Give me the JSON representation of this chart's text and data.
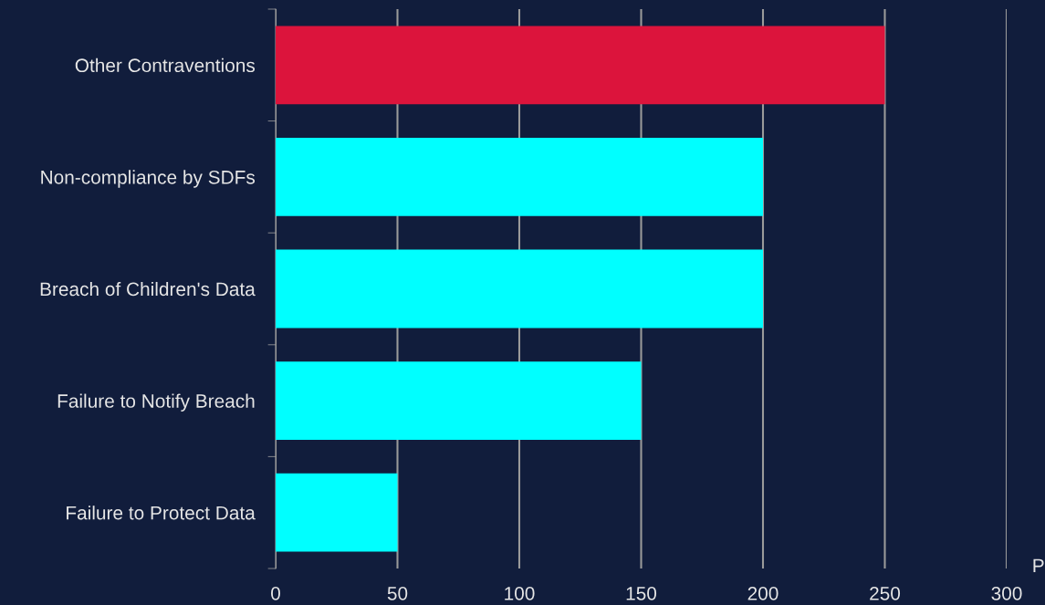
{
  "chart_data": {
    "type": "bar",
    "orientation": "horizontal",
    "categories": [
      "Other Contraventions",
      "Non-compliance by SDFs",
      "Breach of Children's Data",
      "Failure to Notify Breach",
      "Failure to Protect Data"
    ],
    "values": [
      250,
      200,
      200,
      150,
      50
    ],
    "colors": [
      "#dc143c",
      "#00ffff",
      "#00ffff",
      "#00ffff",
      "#00ffff"
    ],
    "xlabel": "P",
    "xlim": [
      0,
      300
    ],
    "xticks": [
      0,
      50,
      100,
      150,
      200,
      250,
      300
    ],
    "grid": "x"
  }
}
